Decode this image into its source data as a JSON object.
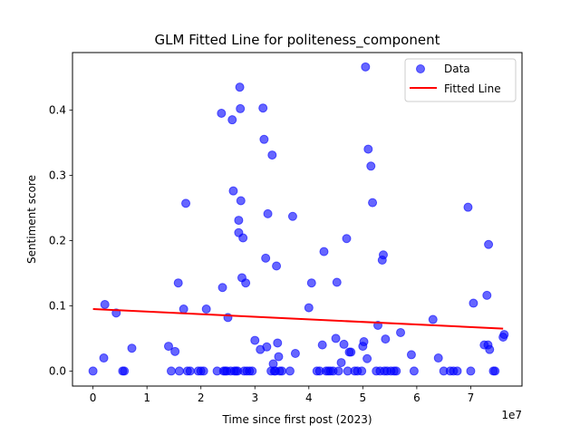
{
  "chart_data": {
    "type": "scatter",
    "title": "GLM Fitted Line for politeness_component",
    "xlabel": "Time since first post (2023)",
    "ylabel": "Sentiment score",
    "x_offset_label": "1e7",
    "xlim": [
      -0.38,
      7.95
    ],
    "ylim": [
      -0.023,
      0.488
    ],
    "x_ticks": [
      0,
      1,
      2,
      3,
      4,
      5,
      6,
      7
    ],
    "x_tick_labels": [
      "0",
      "1",
      "2",
      "3",
      "4",
      "5",
      "6",
      "7"
    ],
    "y_ticks": [
      0.0,
      0.1,
      0.2,
      0.3,
      0.4
    ],
    "y_tick_labels": [
      "0.0",
      "0.1",
      "0.2",
      "0.3",
      "0.4"
    ],
    "grid": false,
    "legend_position": "top-right",
    "series": [
      {
        "name": "Data",
        "kind": "scatter",
        "color": "#0000ff",
        "points": [
          [
            0.0,
            0.0
          ],
          [
            0.2,
            0.02
          ],
          [
            0.22,
            0.102
          ],
          [
            0.43,
            0.089
          ],
          [
            0.55,
            0.0
          ],
          [
            0.58,
            0.0
          ],
          [
            0.72,
            0.035
          ],
          [
            1.4,
            0.038
          ],
          [
            1.45,
            0.0
          ],
          [
            1.52,
            0.03
          ],
          [
            1.58,
            0.135
          ],
          [
            1.6,
            0.0
          ],
          [
            1.68,
            0.095
          ],
          [
            1.72,
            0.257
          ],
          [
            1.75,
            0.0
          ],
          [
            1.8,
            0.0
          ],
          [
            1.95,
            0.0
          ],
          [
            2.0,
            0.0
          ],
          [
            2.05,
            0.0
          ],
          [
            2.1,
            0.095
          ],
          [
            2.3,
            0.0
          ],
          [
            2.38,
            0.395
          ],
          [
            2.4,
            0.128
          ],
          [
            2.42,
            0.0
          ],
          [
            2.45,
            0.0
          ],
          [
            2.48,
            0.0
          ],
          [
            2.5,
            0.082
          ],
          [
            2.55,
            0.0
          ],
          [
            2.58,
            0.385
          ],
          [
            2.6,
            0.276
          ],
          [
            2.62,
            0.0
          ],
          [
            2.65,
            0.0
          ],
          [
            2.68,
            0.0
          ],
          [
            2.7,
            0.231
          ],
          [
            2.7,
            0.212
          ],
          [
            2.72,
            0.435
          ],
          [
            2.73,
            0.402
          ],
          [
            2.74,
            0.261
          ],
          [
            2.76,
            0.143
          ],
          [
            2.78,
            0.204
          ],
          [
            2.8,
            0.0
          ],
          [
            2.83,
            0.135
          ],
          [
            2.85,
            0.0
          ],
          [
            2.9,
            0.0
          ],
          [
            2.95,
            0.0
          ],
          [
            3.0,
            0.047
          ],
          [
            3.1,
            0.033
          ],
          [
            3.15,
            0.403
          ],
          [
            3.17,
            0.355
          ],
          [
            3.2,
            0.173
          ],
          [
            3.22,
            0.037
          ],
          [
            3.24,
            0.241
          ],
          [
            3.3,
            0.0
          ],
          [
            3.32,
            0.331
          ],
          [
            3.34,
            0.011
          ],
          [
            3.36,
            0.0
          ],
          [
            3.38,
            0.0
          ],
          [
            3.4,
            0.161
          ],
          [
            3.42,
            0.043
          ],
          [
            3.44,
            0.022
          ],
          [
            3.46,
            0.0
          ],
          [
            3.5,
            0.0
          ],
          [
            3.65,
            0.0
          ],
          [
            3.7,
            0.237
          ],
          [
            3.75,
            0.027
          ],
          [
            4.0,
            0.097
          ],
          [
            4.05,
            0.135
          ],
          [
            4.15,
            0.0
          ],
          [
            4.2,
            0.0
          ],
          [
            4.25,
            0.04
          ],
          [
            4.28,
            0.183
          ],
          [
            4.32,
            0.0
          ],
          [
            4.36,
            0.0
          ],
          [
            4.4,
            0.0
          ],
          [
            4.45,
            0.0
          ],
          [
            4.5,
            0.05
          ],
          [
            4.52,
            0.136
          ],
          [
            4.55,
            0.0
          ],
          [
            4.6,
            0.013
          ],
          [
            4.65,
            0.041
          ],
          [
            4.7,
            0.203
          ],
          [
            4.72,
            0.0
          ],
          [
            4.75,
            0.029
          ],
          [
            4.78,
            0.029
          ],
          [
            4.85,
            0.0
          ],
          [
            4.9,
            0.0
          ],
          [
            4.98,
            0.0
          ],
          [
            5.0,
            0.038
          ],
          [
            5.02,
            0.045
          ],
          [
            5.05,
            0.466
          ],
          [
            5.08,
            0.019
          ],
          [
            5.1,
            0.34
          ],
          [
            5.15,
            0.314
          ],
          [
            5.18,
            0.258
          ],
          [
            5.25,
            0.0
          ],
          [
            5.28,
            0.07
          ],
          [
            5.32,
            0.0
          ],
          [
            5.36,
            0.17
          ],
          [
            5.38,
            0.178
          ],
          [
            5.4,
            0.0
          ],
          [
            5.42,
            0.049
          ],
          [
            5.45,
            0.0
          ],
          [
            5.52,
            0.0
          ],
          [
            5.58,
            0.0
          ],
          [
            5.62,
            0.0
          ],
          [
            5.7,
            0.059
          ],
          [
            5.9,
            0.025
          ],
          [
            5.95,
            0.0
          ],
          [
            6.3,
            0.079
          ],
          [
            6.4,
            0.02
          ],
          [
            6.5,
            0.0
          ],
          [
            6.62,
            0.0
          ],
          [
            6.68,
            0.0
          ],
          [
            6.75,
            0.0
          ],
          [
            6.95,
            0.251
          ],
          [
            7.0,
            0.0
          ],
          [
            7.05,
            0.104
          ],
          [
            7.25,
            0.04
          ],
          [
            7.3,
            0.116
          ],
          [
            7.32,
            0.04
          ],
          [
            7.33,
            0.194
          ],
          [
            7.35,
            0.033
          ],
          [
            7.42,
            0.0
          ],
          [
            7.45,
            0.0
          ],
          [
            7.6,
            0.052
          ],
          [
            7.62,
            0.056
          ]
        ]
      },
      {
        "name": "Fitted Line",
        "kind": "line",
        "color": "#ff0000",
        "points": [
          [
            0.0,
            0.095
          ],
          [
            7.6,
            0.065
          ]
        ]
      }
    ]
  }
}
